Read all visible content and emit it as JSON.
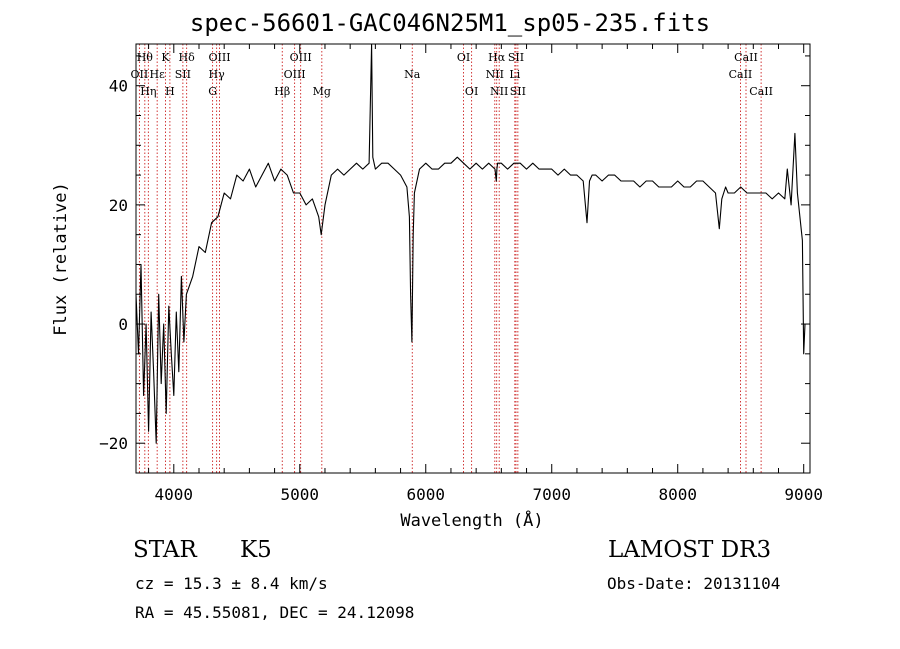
{
  "chart_data": {
    "type": "line",
    "title": "spec-56601-GAC046N25M1_sp05-235.fits",
    "xlabel": "Wavelength (Å)",
    "ylabel": "Flux (relative)",
    "xlim": [
      3700,
      9050
    ],
    "ylim": [
      -25,
      47
    ],
    "x_ticks": [
      4000,
      5000,
      6000,
      7000,
      8000,
      9000
    ],
    "y_ticks": [
      -20,
      0,
      20,
      40
    ],
    "y_tick_labels": [
      "−20",
      "0",
      "20",
      "40"
    ],
    "grid": false,
    "line_color": "#000000",
    "marker_color": "#cc2222",
    "series": [
      {
        "x": [
          3700,
          3720,
          3740,
          3760,
          3780,
          3800,
          3820,
          3840,
          3860,
          3880,
          3900,
          3920,
          3940,
          3960,
          3980,
          4000,
          4020,
          4040,
          4060,
          4080,
          4100,
          4150,
          4200,
          4250,
          4300,
          4350,
          4400,
          4450,
          4500,
          4550,
          4600,
          4650,
          4700,
          4750,
          4800,
          4850,
          4900,
          4950,
          5000,
          5050,
          5100,
          5150,
          5170,
          5200,
          5250,
          5300,
          5350,
          5400,
          5450,
          5500,
          5550,
          5570,
          5580,
          5600,
          5650,
          5700,
          5750,
          5800,
          5850,
          5870,
          5880,
          5890,
          5900,
          5910,
          5950,
          6000,
          6050,
          6100,
          6150,
          6200,
          6250,
          6300,
          6350,
          6400,
          6450,
          6500,
          6550,
          6560,
          6565,
          6570,
          6600,
          6650,
          6700,
          6750,
          6800,
          6850,
          6900,
          6950,
          7000,
          7050,
          7100,
          7150,
          7200,
          7250,
          7280,
          7300,
          7320,
          7350,
          7400,
          7450,
          7500,
          7550,
          7600,
          7650,
          7700,
          7750,
          7800,
          7850,
          7900,
          7950,
          8000,
          8050,
          8100,
          8150,
          8200,
          8250,
          8300,
          8330,
          8350,
          8380,
          8400,
          8450,
          8500,
          8550,
          8600,
          8650,
          8700,
          8750,
          8800,
          8850,
          8870,
          8900,
          8930,
          8950,
          8970,
          8990,
          9000,
          9010
        ],
        "y": [
          5,
          -5,
          10,
          -12,
          0,
          -18,
          2,
          -8,
          -20,
          5,
          -10,
          0,
          -15,
          3,
          -5,
          -12,
          2,
          -8,
          8,
          -3,
          5,
          8,
          13,
          12,
          17,
          18,
          22,
          21,
          25,
          24,
          26,
          23,
          25,
          27,
          24,
          26,
          25,
          22,
          22,
          20,
          21,
          18,
          15,
          20,
          25,
          26,
          25,
          26,
          27,
          26,
          27,
          47,
          28,
          26,
          27,
          27,
          26,
          25,
          23,
          18,
          5,
          -3,
          15,
          22,
          26,
          27,
          26,
          26,
          27,
          27,
          28,
          27,
          26,
          27,
          26,
          27,
          26,
          24,
          26,
          27,
          27,
          26,
          27,
          27,
          26,
          27,
          26,
          26,
          26,
          25,
          26,
          25,
          25,
          24,
          17,
          24,
          25,
          25,
          24,
          25,
          25,
          24,
          24,
          24,
          23,
          24,
          24,
          23,
          23,
          23,
          24,
          23,
          23,
          24,
          24,
          23,
          22,
          16,
          21,
          23,
          22,
          22,
          23,
          22,
          22,
          22,
          22,
          21,
          22,
          21,
          26,
          20,
          32,
          22,
          18,
          14,
          -5,
          0
        ]
      }
    ],
    "line_markers": [
      {
        "wl": 3727,
        "label": "OII",
        "row": 2
      },
      {
        "wl": 3770,
        "label": "Hθ",
        "row": 1
      },
      {
        "wl": 3798,
        "label": "Hη",
        "row": 3
      },
      {
        "wl": 3868,
        "label": "Hε",
        "row": 2
      },
      {
        "wl": 3934,
        "label": "K",
        "row": 1
      },
      {
        "wl": 3969,
        "label": "H",
        "row": 3
      },
      {
        "wl": 4072,
        "label": "SII",
        "row": 2
      },
      {
        "wl": 4102,
        "label": "Hδ",
        "row": 1
      },
      {
        "wl": 4308,
        "label": "G",
        "row": 3
      },
      {
        "wl": 4340,
        "label": "Hγ",
        "row": 2
      },
      {
        "wl": 4363,
        "label": "OIII",
        "row": 1
      },
      {
        "wl": 4861,
        "label": "Hβ",
        "row": 3
      },
      {
        "wl": 4959,
        "label": "OIII",
        "row": 2
      },
      {
        "wl": 5007,
        "label": "OIII",
        "row": 1
      },
      {
        "wl": 5175,
        "label": "Mg",
        "row": 3
      },
      {
        "wl": 5893,
        "label": "Na",
        "row": 2
      },
      {
        "wl": 6300,
        "label": "OI",
        "row": 1
      },
      {
        "wl": 6364,
        "label": "OI",
        "row": 3
      },
      {
        "wl": 6548,
        "label": "NII",
        "row": 2
      },
      {
        "wl": 6563,
        "label": "Hα",
        "row": 1
      },
      {
        "wl": 6583,
        "label": "NII",
        "row": 3
      },
      {
        "wl": 6707,
        "label": "Li",
        "row": 2
      },
      {
        "wl": 6716,
        "label": "SII",
        "row": 1
      },
      {
        "wl": 6731,
        "label": "SII",
        "row": 3
      },
      {
        "wl": 8498,
        "label": "CaII",
        "row": 2
      },
      {
        "wl": 8542,
        "label": "CaII",
        "row": 1
      },
      {
        "wl": 8662,
        "label": "CaII",
        "row": 3
      }
    ]
  },
  "info": {
    "object_class": "STAR",
    "subclass": "K5",
    "survey": "LAMOST DR3",
    "cz": "cz = 15.3 ± 8.4 km/s",
    "obs_date": "Obs-Date: 20131104",
    "coords": "RA =  45.55081, DEC =  24.12098"
  }
}
